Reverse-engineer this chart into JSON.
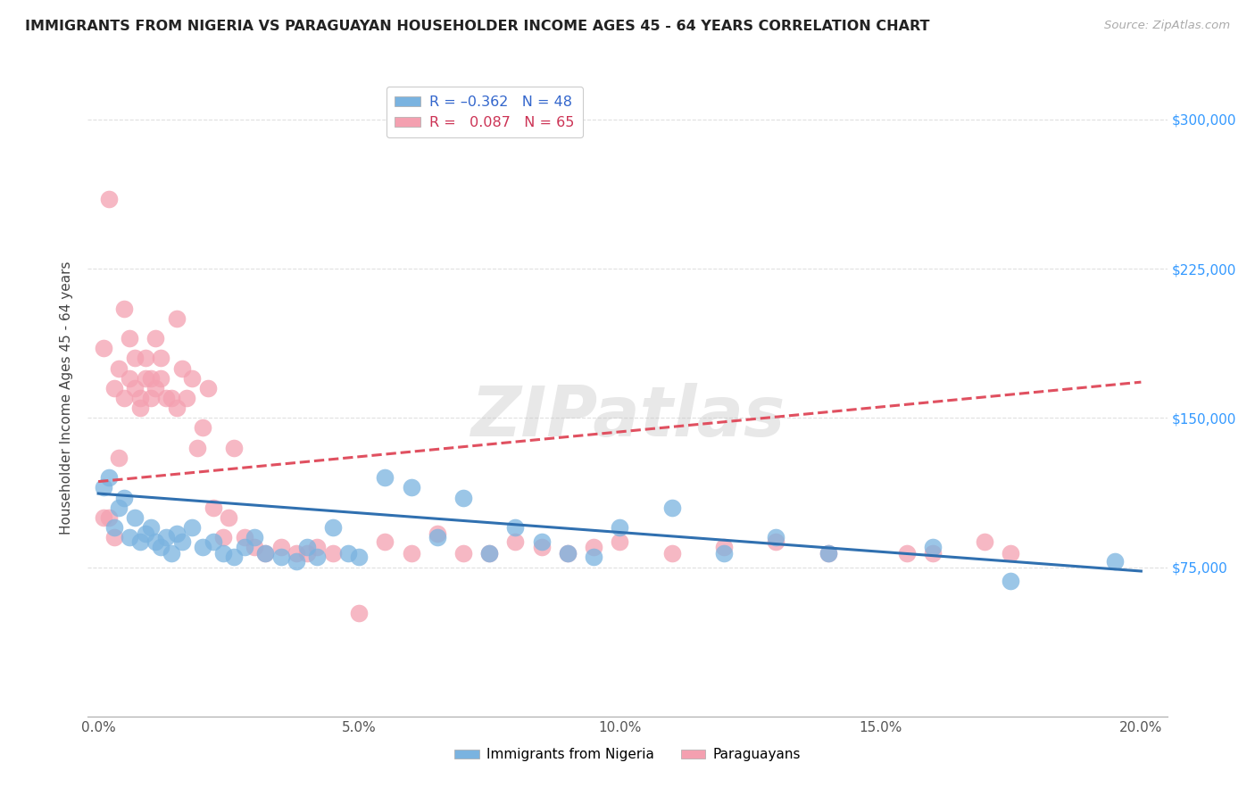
{
  "title": "IMMIGRANTS FROM NIGERIA VS PARAGUAYAN HOUSEHOLDER INCOME AGES 45 - 64 YEARS CORRELATION CHART",
  "source": "Source: ZipAtlas.com",
  "xlabel_ticks": [
    "0.0%",
    "5.0%",
    "10.0%",
    "15.0%",
    "20.0%"
  ],
  "xlabel_tick_vals": [
    0.0,
    0.05,
    0.1,
    0.15,
    0.2
  ],
  "ylabel": "Householder Income Ages 45 - 64 years",
  "ylabel_ticks": [
    "$75,000",
    "$150,000",
    "$225,000",
    "$300,000"
  ],
  "ylabel_tick_vals": [
    75000,
    150000,
    225000,
    300000
  ],
  "ylim": [
    0,
    320000
  ],
  "xlim": [
    -0.002,
    0.205
  ],
  "blue_r": -0.362,
  "blue_n": 48,
  "pink_r": 0.087,
  "pink_n": 65,
  "blue_color": "#7ab3e0",
  "pink_color": "#f4a0b0",
  "blue_line_color": "#3070b0",
  "pink_line_color": "#e05060",
  "background_color": "#ffffff",
  "grid_color": "#dddddd",
  "blue_x": [
    0.001,
    0.002,
    0.003,
    0.004,
    0.005,
    0.006,
    0.007,
    0.008,
    0.009,
    0.01,
    0.011,
    0.012,
    0.013,
    0.014,
    0.015,
    0.016,
    0.018,
    0.02,
    0.022,
    0.024,
    0.026,
    0.028,
    0.03,
    0.032,
    0.035,
    0.038,
    0.04,
    0.042,
    0.045,
    0.048,
    0.05,
    0.055,
    0.06,
    0.065,
    0.07,
    0.075,
    0.08,
    0.085,
    0.09,
    0.095,
    0.1,
    0.11,
    0.12,
    0.13,
    0.14,
    0.16,
    0.175,
    0.195
  ],
  "blue_y": [
    115000,
    120000,
    95000,
    105000,
    110000,
    90000,
    100000,
    88000,
    92000,
    95000,
    88000,
    85000,
    90000,
    82000,
    92000,
    88000,
    95000,
    85000,
    88000,
    82000,
    80000,
    85000,
    90000,
    82000,
    80000,
    78000,
    85000,
    80000,
    95000,
    82000,
    80000,
    120000,
    115000,
    90000,
    110000,
    82000,
    95000,
    88000,
    82000,
    80000,
    95000,
    105000,
    82000,
    90000,
    82000,
    85000,
    68000,
    78000
  ],
  "pink_x": [
    0.001,
    0.001,
    0.002,
    0.002,
    0.003,
    0.003,
    0.004,
    0.004,
    0.005,
    0.005,
    0.006,
    0.006,
    0.007,
    0.007,
    0.008,
    0.008,
    0.009,
    0.009,
    0.01,
    0.01,
    0.011,
    0.011,
    0.012,
    0.012,
    0.013,
    0.014,
    0.015,
    0.015,
    0.016,
    0.017,
    0.018,
    0.019,
    0.02,
    0.021,
    0.022,
    0.024,
    0.025,
    0.026,
    0.028,
    0.03,
    0.032,
    0.035,
    0.038,
    0.04,
    0.042,
    0.045,
    0.05,
    0.055,
    0.06,
    0.065,
    0.07,
    0.075,
    0.08,
    0.085,
    0.09,
    0.095,
    0.1,
    0.11,
    0.12,
    0.13,
    0.14,
    0.155,
    0.16,
    0.17,
    0.175
  ],
  "pink_y": [
    100000,
    185000,
    260000,
    100000,
    165000,
    90000,
    175000,
    130000,
    205000,
    160000,
    190000,
    170000,
    165000,
    180000,
    160000,
    155000,
    180000,
    170000,
    160000,
    170000,
    165000,
    190000,
    180000,
    170000,
    160000,
    160000,
    200000,
    155000,
    175000,
    160000,
    170000,
    135000,
    145000,
    165000,
    105000,
    90000,
    100000,
    135000,
    90000,
    85000,
    82000,
    85000,
    82000,
    82000,
    85000,
    82000,
    52000,
    88000,
    82000,
    92000,
    82000,
    82000,
    88000,
    85000,
    82000,
    85000,
    88000,
    82000,
    85000,
    88000,
    82000,
    82000,
    82000,
    88000,
    82000
  ],
  "blue_line_x": [
    0.0,
    0.2
  ],
  "blue_line_y": [
    112000,
    73000
  ],
  "pink_line_x": [
    0.0,
    0.2
  ],
  "pink_line_y": [
    118000,
    168000
  ]
}
